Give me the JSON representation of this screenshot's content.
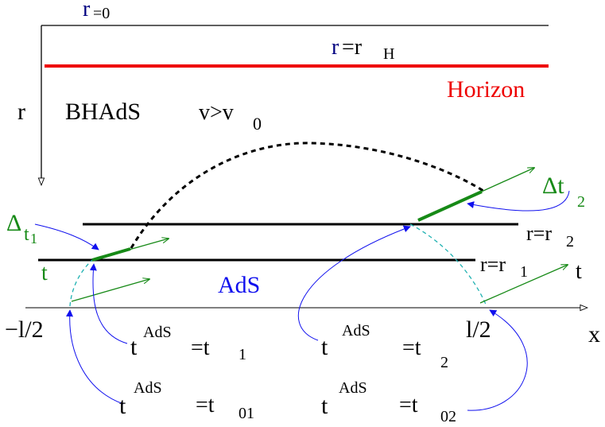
{
  "colors": {
    "black": "#000000",
    "red": "#ee0000",
    "green": "#178a17",
    "blue": "#1010ee",
    "navy": "#000080",
    "cyan": "#20b2b2"
  },
  "labels": {
    "r_zero_r": "r",
    "r_zero_sub": "=0",
    "r_h_r": "r",
    "r_h_eq": "=r",
    "r_h_sub": "H",
    "horizon": "Horizon",
    "r_axis": "r",
    "bhads": "BHAdS",
    "v_cond": "v>v",
    "v_cond_sub": "0",
    "delta_t1_delta": "Δ",
    "delta_t1_t": "t",
    "delta_t1_sub": "1",
    "t_left": "t",
    "delta_t2_delta": "Δt",
    "delta_t2_sub": "2",
    "r_eq_r2": "r=r",
    "r_eq_r2_sub": "2",
    "t_right": "t",
    "r_eq_r1": "r=r",
    "r_eq_r1_sub": "1",
    "ads": "AdS",
    "minus_half_l": "−l/2",
    "half_l": "l/2",
    "x_axis": "x",
    "t_ads_1_t": "t",
    "t_ads_1_sup": "AdS",
    "t_ads_1_eq": "=t",
    "t_ads_1_sub": "1",
    "t_ads_2_t": "t",
    "t_ads_2_sup": "AdS",
    "t_ads_2_eq": "=t",
    "t_ads_2_sub": "2",
    "t_ads_01_t": "t",
    "t_ads_01_sup": "AdS",
    "t_ads_01_eq": "=t",
    "t_ads_01_sub": "01",
    "t_ads_02_t": "t",
    "t_ads_02_sup": "AdS",
    "t_ads_02_eq": "=t",
    "t_ads_02_sub": "02"
  }
}
